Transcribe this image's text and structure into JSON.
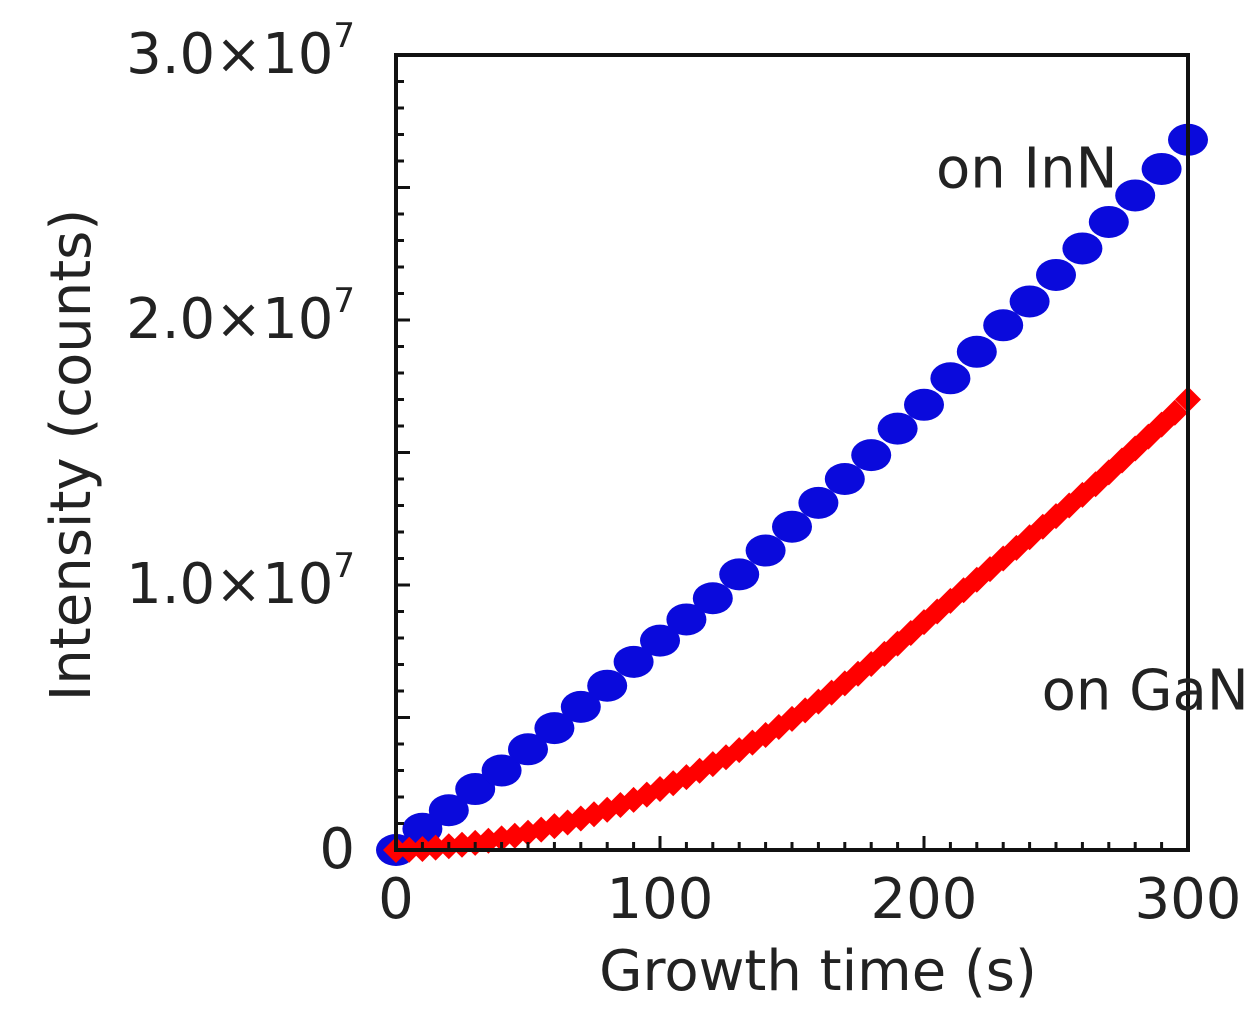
{
  "chart_data": {
    "type": "scatter",
    "title": "",
    "xlabel": "Growth time (s)",
    "ylabel": "Intensity (counts)",
    "xlim": [
      0,
      300
    ],
    "ylim": [
      0,
      30000000
    ],
    "x_ticks": [
      {
        "value": 0,
        "label": "0"
      },
      {
        "value": 100,
        "label": "100"
      },
      {
        "value": 200,
        "label": "200"
      },
      {
        "value": 300,
        "label": "300"
      }
    ],
    "y_ticks": [
      {
        "value": 0,
        "label": "0",
        "mantissa": "",
        "exponent": ""
      },
      {
        "value": 10000000,
        "label": "1.0×10^7",
        "mantissa": "1.0×10",
        "exponent": "7"
      },
      {
        "value": 20000000,
        "label": "2.0×10^7",
        "mantissa": "2.0×10",
        "exponent": "7"
      },
      {
        "value": 30000000,
        "label": "3.0×10^7",
        "mantissa": "3.0×10",
        "exponent": "7"
      }
    ],
    "grid": false,
    "annotations": [
      {
        "text": "on InN",
        "series": "on InN",
        "x": 200,
        "y": 25000000
      },
      {
        "text": "on GaN",
        "series": "on GaN",
        "x": 240,
        "y": 5300000
      }
    ],
    "series": [
      {
        "name": "on InN",
        "color": "#0a0adc",
        "marker": "circle",
        "x": [
          0,
          10,
          20,
          30,
          40,
          50,
          60,
          70,
          80,
          90,
          100,
          110,
          120,
          130,
          140,
          150,
          160,
          170,
          180,
          190,
          200,
          210,
          220,
          230,
          240,
          250,
          260,
          270,
          280,
          290,
          300
        ],
        "y": [
          0,
          800000,
          1500000,
          2300000,
          3000000,
          3800000,
          4600000,
          5400000,
          6200000,
          7100000,
          7900000,
          8700000,
          9500000,
          10400000,
          11300000,
          12200000,
          13100000,
          14000000,
          14900000,
          15900000,
          16800000,
          17800000,
          18800000,
          19800000,
          20700000,
          21700000,
          22700000,
          23700000,
          24700000,
          25700000,
          26800000
        ]
      },
      {
        "name": "on GaN",
        "color": "#ff0000",
        "marker": "diamond",
        "x": [
          0,
          5,
          10,
          15,
          20,
          25,
          30,
          35,
          40,
          45,
          50,
          55,
          60,
          65,
          70,
          75,
          80,
          85,
          90,
          95,
          100,
          105,
          110,
          115,
          120,
          125,
          130,
          135,
          140,
          145,
          150,
          155,
          160,
          165,
          170,
          175,
          180,
          185,
          190,
          195,
          200,
          205,
          210,
          215,
          220,
          225,
          230,
          235,
          240,
          245,
          250,
          255,
          260,
          265,
          270,
          275,
          280,
          285,
          290,
          295,
          300
        ],
        "y": [
          0,
          10000,
          40000,
          90000,
          140000,
          200000,
          270000,
          350000,
          440000,
          540000,
          650000,
          770000,
          900000,
          1040000,
          1190000,
          1350000,
          1520000,
          1700000,
          1890000,
          2090000,
          2300000,
          2520000,
          2750000,
          2990000,
          3240000,
          3500000,
          3770000,
          4050000,
          4340000,
          4640000,
          4950000,
          5270000,
          5600000,
          5940000,
          6290000,
          6650000,
          7020000,
          7400000,
          7790000,
          8190000,
          8600000,
          9000000,
          9400000,
          9800000,
          10200000,
          10600000,
          11000000,
          11400000,
          11800000,
          12200000,
          12600000,
          13000000,
          13400000,
          13800000,
          14250000,
          14700000,
          15150000,
          15600000,
          16050000,
          16500000,
          17000000
        ]
      }
    ]
  }
}
